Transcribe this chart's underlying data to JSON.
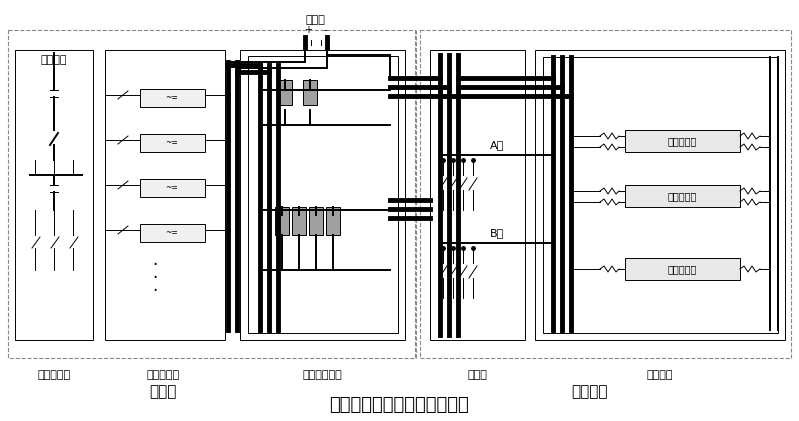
{
  "title": "现有典型高压直流供电系统图",
  "title_fontsize": 13,
  "labels": {
    "mains_input": "市电引入",
    "ac_panel": "交流配电屏",
    "rectifier": "整流器机架",
    "power_room": "电力室",
    "dc_output": "直流总输出屏",
    "battery": "电池组",
    "row_cabinet": "列头柜",
    "equipment_room": "设备机房",
    "equipment_rack": "设备机架",
    "path_a": "A路",
    "path_b": "B路",
    "dual_server1": "双路服务器",
    "dual_server2": "双路服务器",
    "single_server": "单路服务器"
  },
  "fig_width": 7.99,
  "fig_height": 4.21,
  "dpi": 100
}
